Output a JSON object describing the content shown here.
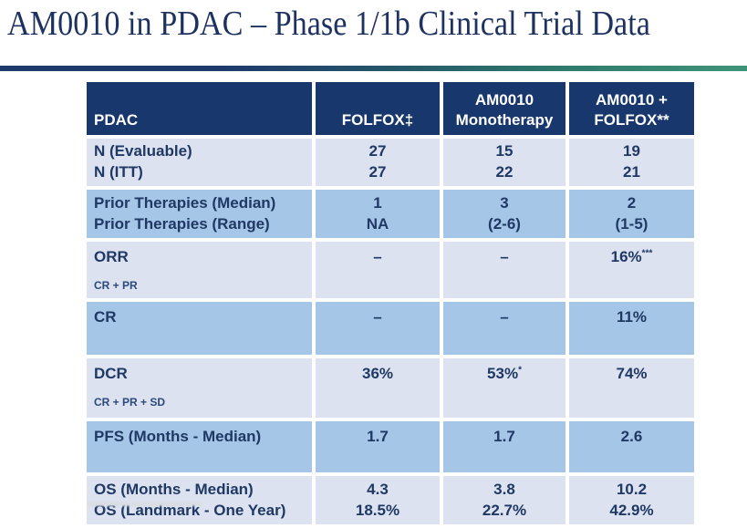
{
  "title": "AM0010 in PDAC – Phase 1/1b Clinical Trial Data",
  "colors": {
    "title_text": "#1d3260",
    "header_bg": "#17376d",
    "row_light": "#dde2f0",
    "row_mid": "#a6c6e7",
    "cell_text": "#1f3864",
    "divider_left": "#1e3a6d",
    "divider_right": "#3f9478"
  },
  "table": {
    "header": {
      "col0": "PDAC",
      "col1": "FOLFOX‡",
      "col2_line1": "AM0010",
      "col2_line2": "Monotherapy",
      "col3_line1": "AM0010 +",
      "col3_line2": "FOLFOX**"
    },
    "groups": [
      {
        "labels": [
          "N (Evaluable)",
          "N (ITT)"
        ],
        "folfox": [
          "27",
          "27"
        ],
        "mono": [
          "15",
          "22"
        ],
        "combo": [
          "19",
          "21"
        ]
      },
      {
        "labels": [
          "Prior Therapies (Median)",
          "Prior Therapies (Range)"
        ],
        "folfox": [
          "1",
          "NA"
        ],
        "mono": [
          "3",
          "(2-6)"
        ],
        "combo": [
          "2",
          "(1-5)"
        ]
      },
      {
        "label": "ORR",
        "sublabel": "CR + PR",
        "folfox": "–",
        "mono": "–",
        "combo": "16%",
        "combo_sup": "***"
      },
      {
        "label": "CR",
        "folfox": "–",
        "mono": "–",
        "combo": "11%"
      },
      {
        "label": "DCR",
        "sublabel": "CR + PR + SD",
        "folfox": "36%",
        "mono": "53%",
        "mono_sup": "*",
        "combo": "74%"
      },
      {
        "label": "PFS (Months - Median)",
        "folfox": "1.7",
        "mono": "1.7",
        "combo": "2.6"
      },
      {
        "labels": [
          "OS (Months - Median)",
          "OS (Landmark - One Year)"
        ],
        "folfox": [
          "4.3",
          "18.5%"
        ],
        "mono": [
          "3.8",
          "22.7%"
        ],
        "combo": [
          "10.2",
          "42.9%"
        ]
      }
    ]
  }
}
